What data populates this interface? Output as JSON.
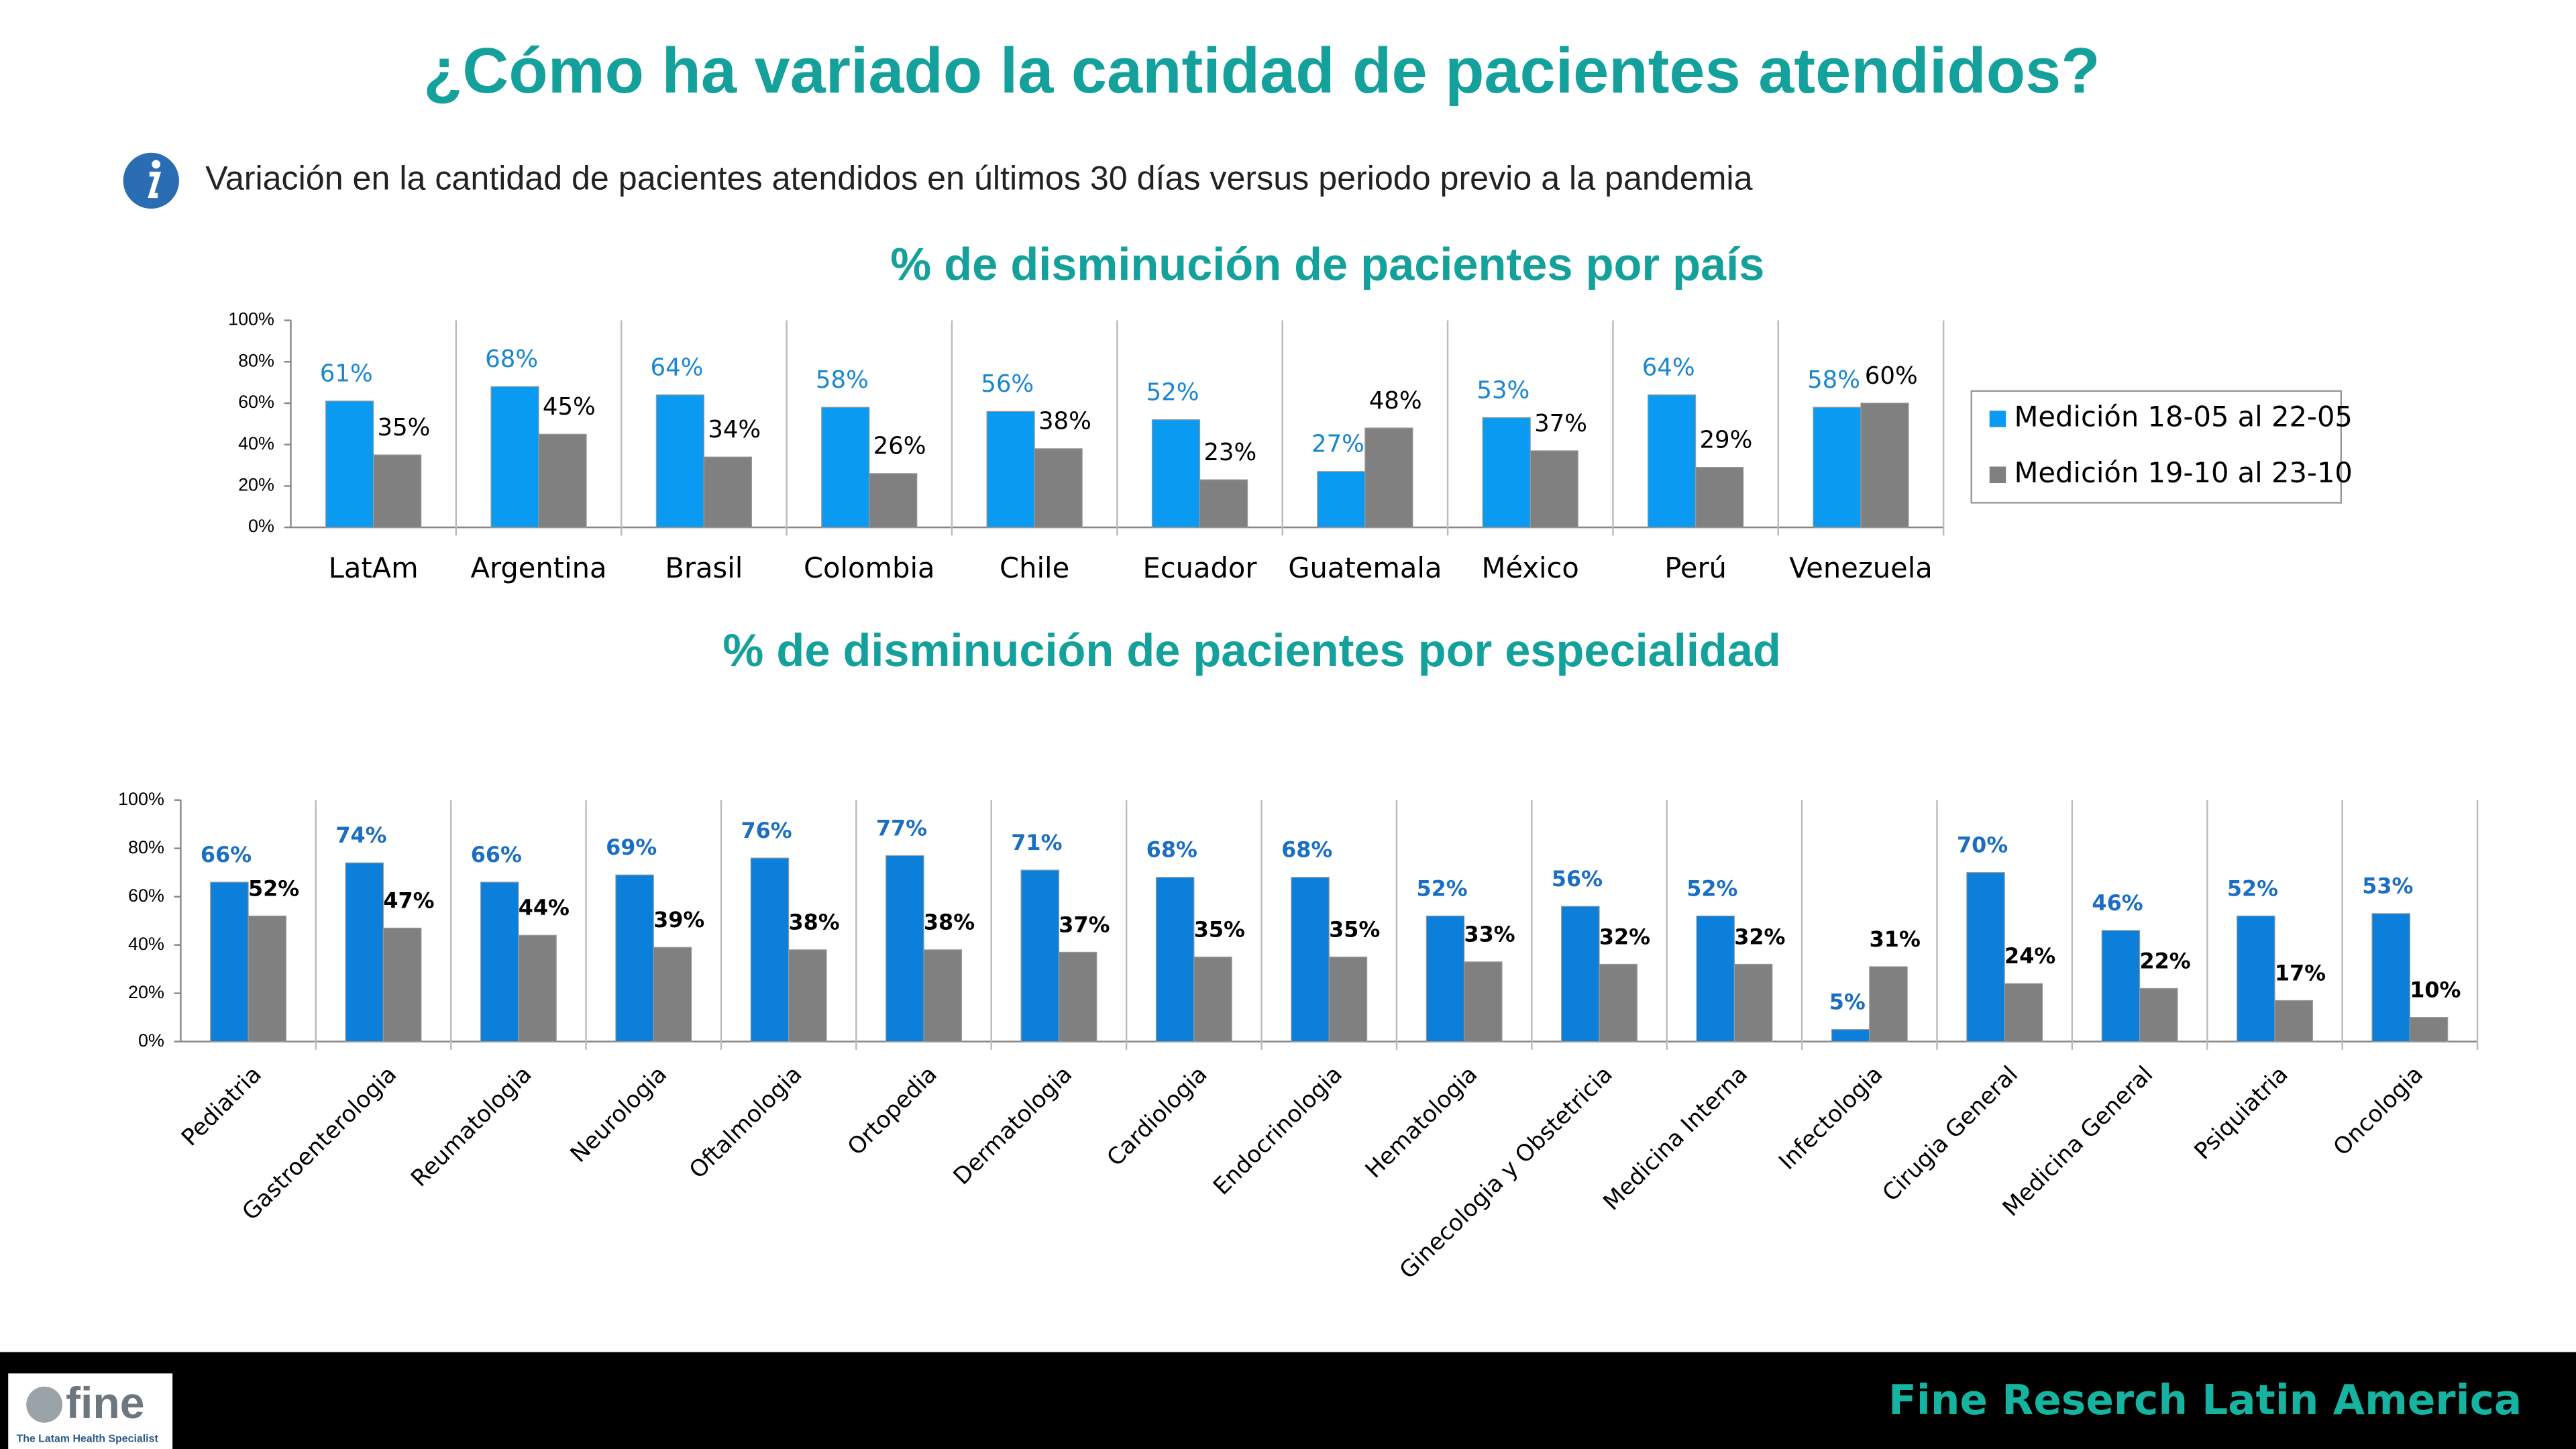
{
  "header": {
    "title": "¿Cómo ha variado la cantidad de pacientes atendidos?",
    "subtitle": "Variación en la cantidad de pacientes atendidos en últimos 30 días versus periodo previo a la pandemia"
  },
  "chart_data": [
    {
      "type": "bar",
      "title": "% de disminución de pacientes por país",
      "categories": [
        "LatAm",
        "Argentina",
        "Brasil",
        "Colombia",
        "Chile",
        "Ecuador",
        "Guatemala",
        "México",
        "Perú",
        "Venezuela"
      ],
      "series": [
        {
          "name": "Medición 18-05 al 22-05",
          "color": "#0a9af2",
          "values": [
            61,
            68,
            64,
            58,
            56,
            52,
            27,
            53,
            64,
            58
          ],
          "value_labels": [
            "61%",
            "68%",
            "64%",
            "58%",
            "56%",
            "52%",
            "27%",
            "53%",
            "64%",
            "58%"
          ]
        },
        {
          "name": "Medición 19-10 al 23-10",
          "color": "#808080",
          "values": [
            35,
            45,
            34,
            26,
            38,
            23,
            48,
            37,
            29,
            60
          ],
          "value_labels": [
            "35%",
            "45%",
            "34%",
            "26%",
            "38%",
            "23%",
            "48%",
            "37%",
            "29%",
            "60%"
          ]
        }
      ],
      "ylim": [
        0,
        100
      ],
      "yticks": [
        {
          "value": 0,
          "label": "0%"
        },
        {
          "value": 20,
          "label": "20%"
        },
        {
          "value": 40,
          "label": "40%"
        },
        {
          "value": 60,
          "label": "60%"
        },
        {
          "value": 80,
          "label": "80%"
        },
        {
          "value": 100,
          "label": "100%"
        }
      ],
      "legend": "right"
    },
    {
      "type": "bar",
      "title": "% de disminución de pacientes por especialidad",
      "categories": [
        "Pediatria",
        "Gastroenterologia",
        "Reumatologia",
        "Neurologia",
        "Oftalmologia",
        "Ortopedia",
        "Dermatologia",
        "Cardiologia",
        "Endocrinologia",
        "Hematologia",
        "Ginecologia y Obstetricia",
        "Medicina Interna",
        "Infectologia",
        "Cirugia General",
        "Medicina General",
        "Psiquiatria",
        "Oncologia"
      ],
      "series": [
        {
          "color": "#0b7fda",
          "values": [
            66,
            74,
            66,
            69,
            76,
            77,
            71,
            68,
            68,
            52,
            56,
            52,
            5,
            70,
            46,
            52,
            53
          ],
          "value_labels": [
            "66%",
            "74%",
            "66%",
            "69%",
            "76%",
            "77%",
            "71%",
            "68%",
            "68%",
            "52%",
            "56%",
            "52%",
            "5%",
            "70%",
            "46%",
            "52%",
            "53%"
          ]
        },
        {
          "color": "#808080",
          "values": [
            52,
            47,
            44,
            39,
            38,
            38,
            37,
            35,
            35,
            33,
            32,
            32,
            31,
            24,
            22,
            17,
            10
          ],
          "value_labels": [
            "52%",
            "47%",
            "44%",
            "39%",
            "38%",
            "38%",
            "37%",
            "35%",
            "35%",
            "33%",
            "32%",
            "32%",
            "31%",
            "24%",
            "22%",
            "17%",
            "10%"
          ]
        }
      ],
      "ylim": [
        0,
        100
      ],
      "yticks": [
        {
          "value": 0,
          "label": "0%"
        },
        {
          "value": 20,
          "label": "20%"
        },
        {
          "value": 40,
          "label": "40%"
        },
        {
          "value": 60,
          "label": "60%"
        },
        {
          "value": 80,
          "label": "80%"
        },
        {
          "value": 100,
          "label": "100%"
        }
      ]
    }
  ],
  "footer": {
    "logo": "fine",
    "tagline": "The Latam Health Specialist",
    "text": "Fine Reserch Latin America"
  }
}
